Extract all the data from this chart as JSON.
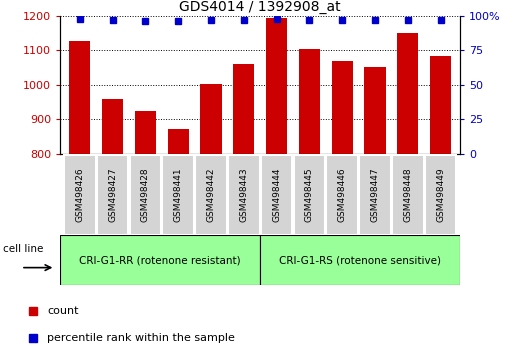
{
  "title": "GDS4014 / 1392908_at",
  "categories": [
    "GSM498426",
    "GSM498427",
    "GSM498428",
    "GSM498441",
    "GSM498442",
    "GSM498443",
    "GSM498444",
    "GSM498445",
    "GSM498446",
    "GSM498447",
    "GSM498448",
    "GSM498449"
  ],
  "bar_values": [
    1128,
    958,
    924,
    872,
    1003,
    1062,
    1193,
    1103,
    1068,
    1053,
    1150,
    1083
  ],
  "percentile_values": [
    98,
    97,
    96,
    96,
    97,
    97,
    98,
    97,
    97,
    97,
    97,
    97
  ],
  "bar_color": "#cc0000",
  "dot_color": "#0000cc",
  "ylim_left": [
    800,
    1200
  ],
  "ylim_right": [
    0,
    100
  ],
  "yticks_left": [
    800,
    900,
    1000,
    1100,
    1200
  ],
  "yticks_right": [
    0,
    25,
    50,
    75,
    100
  ],
  "group1_label": "CRI-G1-RR (rotenone resistant)",
  "group2_label": "CRI-G1-RS (rotenone sensitive)",
  "cell_line_label": "cell line",
  "legend_count_label": "count",
  "legend_pct_label": "percentile rank within the sample",
  "bg_color": "#ffffff",
  "group_bg_color": "#99ff99",
  "tick_label_bg": "#d4d4d4",
  "border_color": "#000000"
}
